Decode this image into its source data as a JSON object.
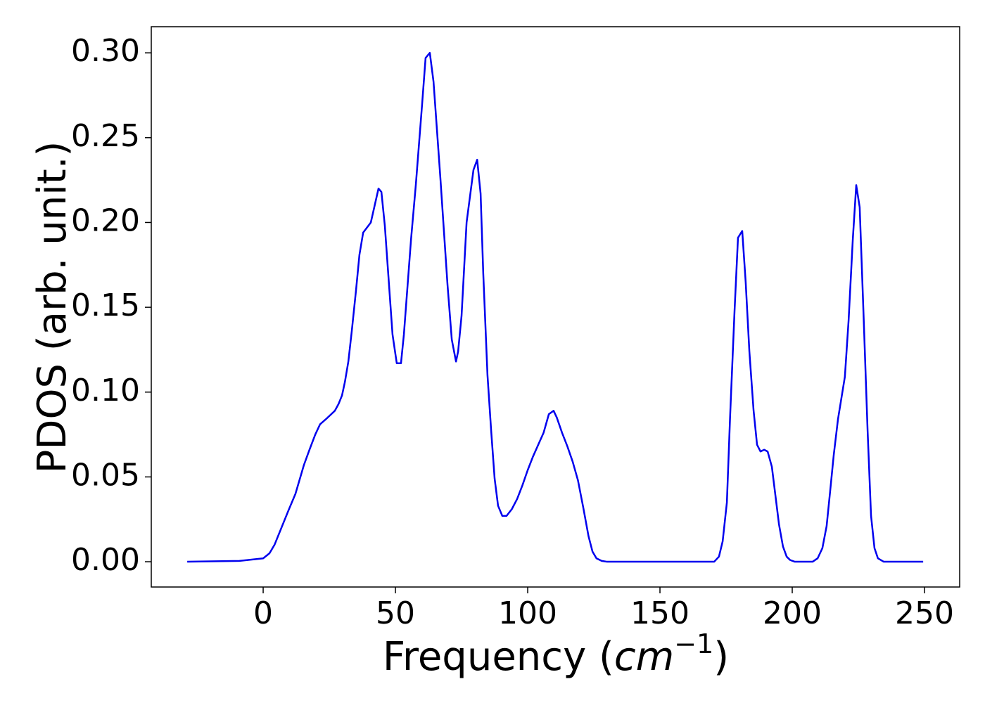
{
  "chart_data": {
    "type": "line",
    "xlabel": [
      "Frequency (",
      "cm",
      "−1",
      ")"
    ],
    "ylabel": "PDOS (arb. unit.)",
    "xlim": [
      -42.3,
      263.3
    ],
    "ylim": [
      -0.0149,
      0.3154
    ],
    "xticks": [
      0,
      50,
      100,
      150,
      200,
      250
    ],
    "yticks": [
      {
        "value": 0,
        "label": "0.00"
      },
      {
        "value": 0.05,
        "label": "0.05"
      },
      {
        "value": 0.1,
        "label": "0.10"
      },
      {
        "value": 0.15,
        "label": "0.15"
      },
      {
        "value": 0.2,
        "label": "0.20"
      },
      {
        "value": 0.25,
        "label": "0.25"
      },
      {
        "value": 0.3,
        "label": "0.30"
      }
    ],
    "grid": false,
    "x": [
      -28.7,
      -9,
      0,
      2.4,
      4.3,
      6.9,
      9.5,
      12.2,
      15.4,
      17.5,
      19.7,
      21.5,
      23.7,
      27.1,
      28.5,
      29.8,
      30.9,
      32.2,
      33.5,
      35.1,
      36.4,
      37.8,
      40.7,
      43.6,
      44.7,
      46,
      48.9,
      50.5,
      52.1,
      53.2,
      55.9,
      57.7,
      60.1,
      61.4,
      63,
      64.4,
      67,
      69.7,
      71.3,
      72.9,
      73.7,
      75,
      76.9,
      79.5,
      80.9,
      82.2,
      83.2,
      84.8,
      86.2,
      87.5,
      88.8,
      90.4,
      92,
      94,
      96,
      98,
      100,
      102,
      104,
      106,
      108,
      109.8,
      111,
      113,
      115,
      117,
      119,
      121,
      123,
      124.5,
      126,
      128,
      130,
      170.5,
      172.3,
      173.7,
      175.3,
      176.5,
      178.2,
      179.5,
      181.1,
      182.4,
      183.8,
      185.4,
      186.7,
      188,
      189.4,
      190.7,
      192.3,
      195,
      196.5,
      197.9,
      199.2,
      201,
      207.7,
      209.6,
      211.4,
      213,
      214.3,
      215.7,
      217.3,
      219.9,
      221.3,
      222.9,
      224.2,
      225.5,
      227,
      228.5,
      229.8,
      231.1,
      232.4,
      234.6,
      249.5
    ],
    "series": [
      {
        "name": "PDOS",
        "color": "#0000ee",
        "values": [
          0,
          0.0005,
          0.002,
          0.005,
          0.01,
          0.02,
          0.03,
          0.04,
          0.057,
          0.066,
          0.075,
          0.081,
          0.084,
          0.089,
          0.093,
          0.098,
          0.106,
          0.118,
          0.136,
          0.16,
          0.181,
          0.194,
          0.2,
          0.22,
          0.218,
          0.198,
          0.134,
          0.117,
          0.117,
          0.134,
          0.19,
          0.222,
          0.27,
          0.297,
          0.3,
          0.283,
          0.226,
          0.163,
          0.131,
          0.118,
          0.124,
          0.145,
          0.2,
          0.231,
          0.237,
          0.217,
          0.17,
          0.11,
          0.077,
          0.049,
          0.033,
          0.027,
          0.027,
          0.031,
          0.037,
          0.045,
          0.054,
          0.062,
          0.069,
          0.076,
          0.087,
          0.089,
          0.085,
          0.076,
          0.068,
          0.059,
          0.048,
          0.032,
          0.015,
          0.006,
          0.002,
          0.0005,
          0,
          0,
          0.003,
          0.012,
          0.035,
          0.085,
          0.148,
          0.191,
          0.195,
          0.165,
          0.124,
          0.089,
          0.069,
          0.065,
          0.066,
          0.065,
          0.056,
          0.022,
          0.009,
          0.003,
          0.001,
          0,
          0,
          0.002,
          0.008,
          0.021,
          0.041,
          0.063,
          0.084,
          0.109,
          0.142,
          0.19,
          0.222,
          0.209,
          0.144,
          0.077,
          0.027,
          0.008,
          0.002,
          0,
          0
        ]
      }
    ]
  }
}
